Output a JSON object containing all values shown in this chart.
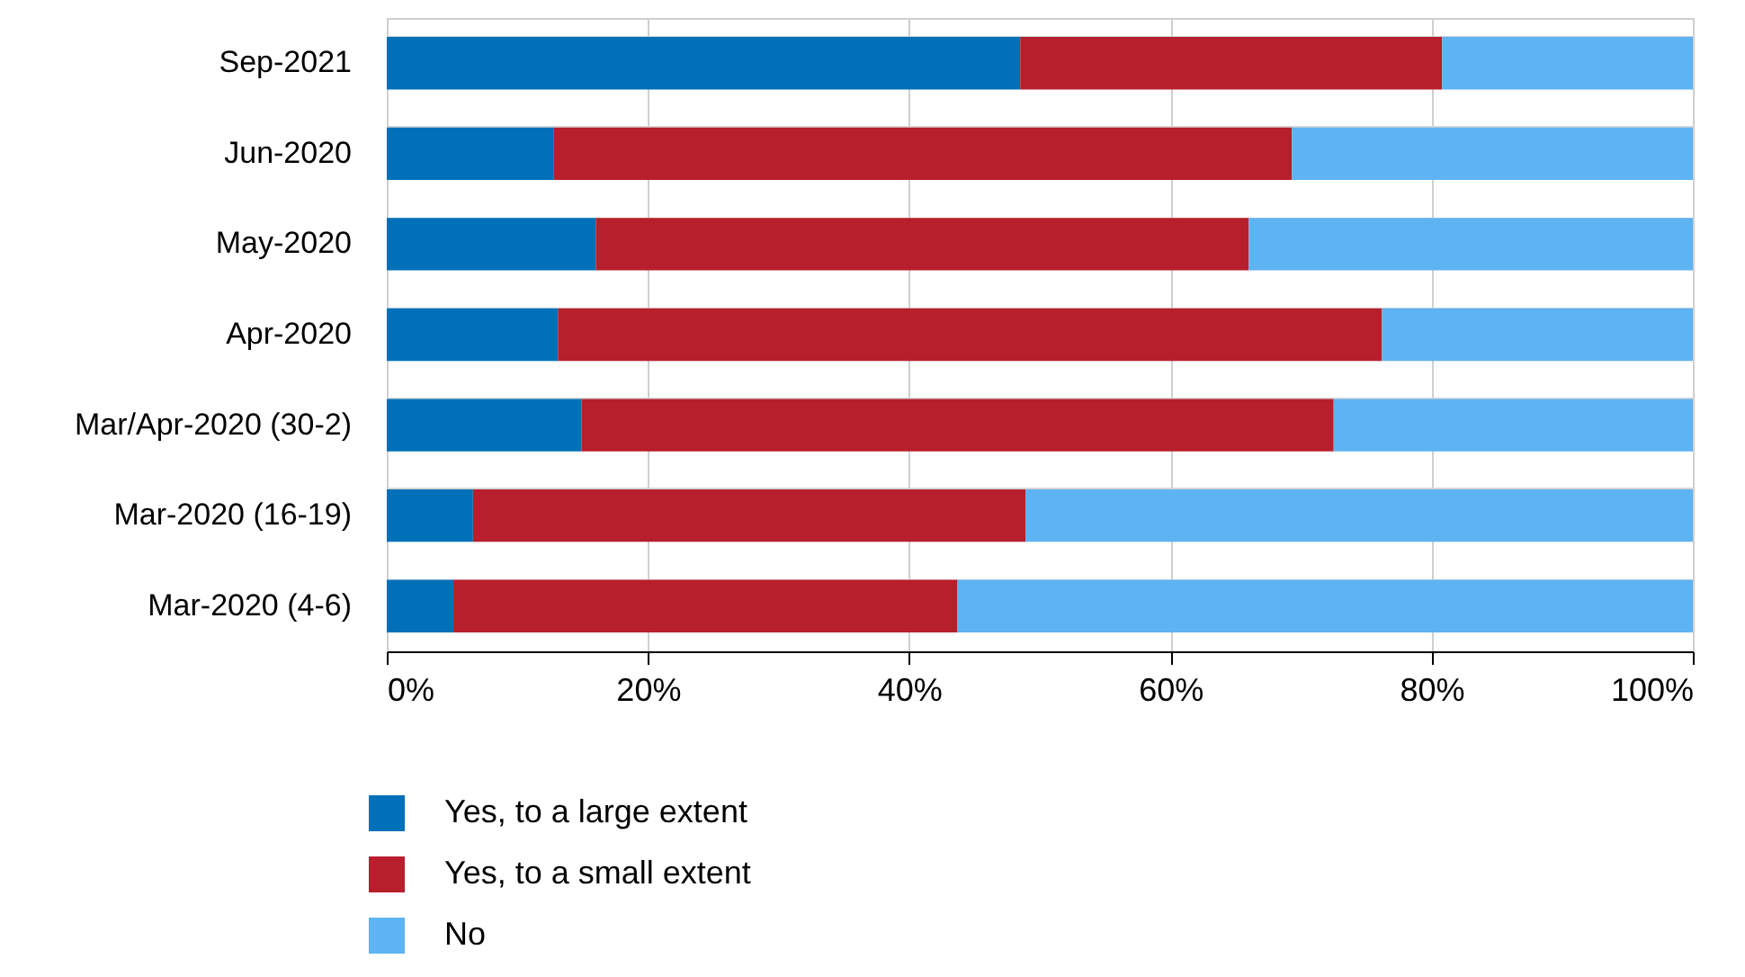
{
  "chart_data": {
    "type": "bar",
    "orientation": "horizontal",
    "stacked": true,
    "categories": [
      "Sep-2021",
      "Jun-2020",
      "May-2020",
      "Apr-2020",
      "Mar/Apr-2020 (30-2)",
      "Mar-2020 (16-19)",
      "Mar-2020 (4-6)"
    ],
    "series": [
      {
        "name": "Yes, to a large extent",
        "color": "#0070b8",
        "values": [
          48.5,
          12.8,
          16.0,
          13.1,
          14.9,
          6.6,
          5.1
        ]
      },
      {
        "name": "Yes, to a small extent",
        "color": "#b81f2c",
        "values": [
          32.3,
          56.5,
          50.0,
          63.1,
          57.6,
          42.3,
          38.6
        ]
      },
      {
        "name": "No",
        "color": "#5eb3f2",
        "values": [
          19.2,
          30.7,
          34.0,
          23.8,
          27.5,
          51.1,
          56.3
        ]
      }
    ],
    "xlim": [
      0,
      100
    ],
    "xticks": [
      {
        "value": 0,
        "label": "0%"
      },
      {
        "value": 20,
        "label": "20%"
      },
      {
        "value": 40,
        "label": "40%"
      },
      {
        "value": 60,
        "label": "60%"
      },
      {
        "value": 80,
        "label": "80%"
      },
      {
        "value": 100,
        "label": "100%"
      }
    ],
    "grid": true,
    "legend": "bottom"
  }
}
